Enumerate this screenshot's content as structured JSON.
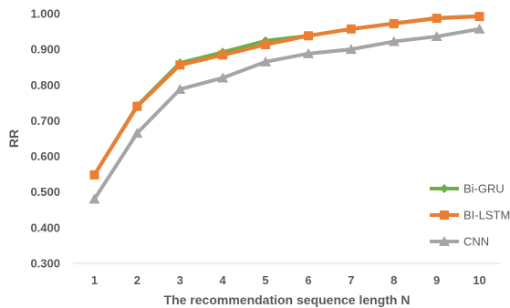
{
  "chart_data": {
    "type": "line",
    "title": "",
    "xlabel": "The recommendation sequence length N",
    "ylabel": "RR",
    "ylim": [
      0.3,
      1.0
    ],
    "yticks": [
      "0.300",
      "0.400",
      "0.500",
      "0.600",
      "0.700",
      "0.800",
      "0.900",
      "1.000"
    ],
    "categories": [
      "1",
      "2",
      "3",
      "4",
      "5",
      "6",
      "7",
      "8",
      "9",
      "10"
    ],
    "grid": false,
    "legend_position": "right",
    "series": [
      {
        "name": "Bi-GRU",
        "color": "#70AD47",
        "marker": "diamond",
        "values": [
          0.548,
          0.742,
          0.862,
          0.892,
          0.924,
          0.938,
          0.957,
          0.973,
          0.988,
          0.993
        ]
      },
      {
        "name": "BI-LSTM",
        "color": "#ED7D31",
        "marker": "square",
        "values": [
          0.548,
          0.74,
          0.856,
          0.884,
          0.913,
          0.938,
          0.957,
          0.972,
          0.987,
          0.992
        ]
      },
      {
        "name": "CNN",
        "color": "#A5A5A5",
        "marker": "triangle",
        "values": [
          0.48,
          0.665,
          0.788,
          0.82,
          0.865,
          0.888,
          0.9,
          0.922,
          0.936,
          0.957
        ]
      }
    ]
  }
}
